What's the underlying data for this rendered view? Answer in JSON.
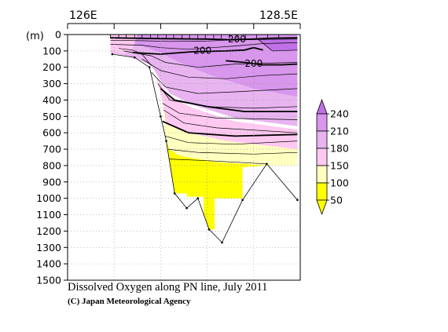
{
  "chart_data": {
    "type": "heatmap",
    "title": "Dissolved Oxygen along PN line, July 2011",
    "credit": "(C) Japan Meteorological Agency",
    "x_axis": {
      "range": [
        126.0,
        128.5
      ],
      "labels": [
        {
          "value": 126.0,
          "text": "126E"
        },
        {
          "value": 128.5,
          "text": "128.5E"
        }
      ],
      "ticks": [
        126.0,
        126.5,
        127.0,
        127.5,
        128.0,
        128.5
      ],
      "station_ticks": [
        126.46,
        126.55,
        126.63,
        126.72,
        126.8,
        126.89,
        126.97,
        127.06,
        127.14,
        127.23,
        127.31,
        127.4,
        127.48,
        127.57,
        127.65,
        127.74,
        127.82,
        127.91,
        128.03,
        128.15,
        128.27
      ]
    },
    "y_axis": {
      "unit": "(m)",
      "range": [
        0,
        1500
      ],
      "inverted": true,
      "ticks": [
        0,
        100,
        200,
        300,
        400,
        500,
        600,
        700,
        800,
        900,
        1000,
        1100,
        1200,
        1300,
        1400,
        1500
      ]
    },
    "grid": true,
    "colorbar": {
      "placement": "right",
      "levels": [
        50,
        100,
        150,
        180,
        210,
        240
      ],
      "labels": [
        "240",
        "210",
        "180",
        "150",
        "100",
        "50"
      ],
      "colors": [
        "#ffff00",
        "#ffffc0",
        "#ffc8f0",
        "#e8b4f0",
        "#d896ec",
        "#c070e8"
      ]
    },
    "contour_labels": [
      {
        "text": "200",
        "lon": 127.82,
        "depth": 28
      },
      {
        "text": "200",
        "lon": 127.45,
        "depth": 98
      },
      {
        "text": "200",
        "lon": 128.0,
        "depth": 178
      }
    ],
    "bottom_profile": [
      {
        "lon": 126.48,
        "depth": 120
      },
      {
        "lon": 126.72,
        "depth": 140
      },
      {
        "lon": 126.88,
        "depth": 200
      },
      {
        "lon": 127.0,
        "depth": 500
      },
      {
        "lon": 127.06,
        "depth": 650
      },
      {
        "lon": 127.15,
        "depth": 970
      },
      {
        "lon": 127.28,
        "depth": 1060
      },
      {
        "lon": 127.4,
        "depth": 1000
      },
      {
        "lon": 127.52,
        "depth": 1190
      },
      {
        "lon": 127.66,
        "depth": 1270
      },
      {
        "lon": 127.88,
        "depth": 1010
      },
      {
        "lon": 128.14,
        "depth": 790
      },
      {
        "lon": 128.47,
        "depth": 1010
      }
    ]
  }
}
